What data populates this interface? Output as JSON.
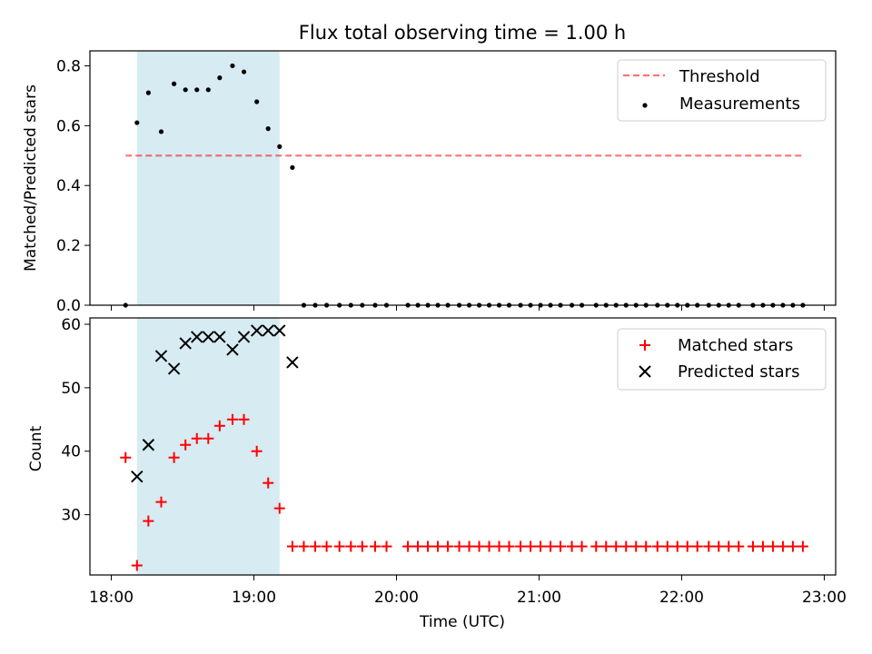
{
  "chart_data": [
    {
      "type": "scatter",
      "title": "Flux total observing time = 1.00 h",
      "xlabel": "",
      "ylabel": "Matched/Predicted stars",
      "ylim": [
        0,
        0.85
      ],
      "yticks": [
        "0.0",
        "0.2",
        "0.4",
        "0.6",
        "0.8"
      ],
      "x_unit": "hours UTC",
      "xlim": [
        17.85,
        23.08
      ],
      "shaded_interval": {
        "x": [
          18.18,
          19.18
        ],
        "color": "#add8e6"
      },
      "legend_position": "upper right",
      "threshold": {
        "name": "Threshold",
        "y": 0.5,
        "x": [
          18.1,
          22.86
        ],
        "color": "#ff0000"
      },
      "series": [
        {
          "name": "Measurements",
          "marker": "dot",
          "color": "#000000",
          "x": [
            18.1,
            18.18,
            18.26,
            18.35,
            18.44,
            18.52,
            18.6,
            18.68,
            18.76,
            18.85,
            18.93,
            19.02,
            19.1,
            19.18,
            19.27,
            19.35,
            19.43,
            19.51,
            19.6,
            19.68,
            19.76,
            19.85,
            19.93,
            20.08,
            20.15,
            20.22,
            20.29,
            20.36,
            20.44,
            20.51,
            20.58,
            20.65,
            20.72,
            20.79,
            20.87,
            20.94,
            21.01,
            21.08,
            21.15,
            21.23,
            21.3,
            21.4,
            21.47,
            21.54,
            21.61,
            21.68,
            21.75,
            21.83,
            21.9,
            21.97,
            22.04,
            22.11,
            22.19,
            22.26,
            22.33,
            22.4,
            22.5,
            22.57,
            22.64,
            22.71,
            22.78,
            22.85
          ],
          "y": [
            0,
            0.61,
            0.71,
            0.58,
            0.74,
            0.72,
            0.72,
            0.72,
            0.76,
            0.8,
            0.78,
            0.68,
            0.59,
            0.53,
            0.46,
            0,
            0,
            0,
            0,
            0,
            0,
            0,
            0,
            0,
            0,
            0,
            0,
            0,
            0,
            0,
            0,
            0,
            0,
            0,
            0,
            0,
            0,
            0,
            0,
            0,
            0,
            0,
            0,
            0,
            0,
            0,
            0,
            0,
            0,
            0,
            0,
            0,
            0,
            0,
            0,
            0,
            0,
            0,
            0,
            0,
            0,
            0
          ]
        }
      ]
    },
    {
      "type": "scatter",
      "title": "",
      "xlabel": "Time (UTC)",
      "ylabel": "Count",
      "ylim": [
        20.5,
        61
      ],
      "yticks": [
        "30",
        "40",
        "50",
        "60"
      ],
      "xticks": [
        "18:00",
        "19:00",
        "20:00",
        "21:00",
        "22:00",
        "23:00"
      ],
      "x_unit": "hours UTC",
      "xlim": [
        17.85,
        23.08
      ],
      "shaded_interval": {
        "x": [
          18.18,
          19.18
        ],
        "color": "#add8e6"
      },
      "legend_position": "upper right",
      "series": [
        {
          "name": "Matched stars",
          "marker": "plus",
          "color": "#ff0000",
          "x": [
            18.1,
            18.18,
            18.26,
            18.35,
            18.44,
            18.52,
            18.6,
            18.68,
            18.76,
            18.85,
            18.93,
            19.02,
            19.1,
            19.18,
            19.27,
            19.35,
            19.43,
            19.51,
            19.6,
            19.68,
            19.76,
            19.85,
            19.93,
            20.08,
            20.15,
            20.22,
            20.29,
            20.36,
            20.44,
            20.51,
            20.58,
            20.65,
            20.72,
            20.79,
            20.87,
            20.94,
            21.01,
            21.08,
            21.15,
            21.23,
            21.3,
            21.4,
            21.47,
            21.54,
            21.61,
            21.68,
            21.75,
            21.83,
            21.9,
            21.97,
            22.04,
            22.11,
            22.19,
            22.26,
            22.33,
            22.4,
            22.5,
            22.57,
            22.64,
            22.71,
            22.78,
            22.85
          ],
          "y": [
            39,
            22,
            29,
            32,
            39,
            41,
            42,
            42,
            44,
            45,
            45,
            40,
            35,
            31,
            25,
            25,
            25,
            25,
            25,
            25,
            25,
            25,
            25,
            25,
            25,
            25,
            25,
            25,
            25,
            25,
            25,
            25,
            25,
            25,
            25,
            25,
            25,
            25,
            25,
            25,
            25,
            25,
            25,
            25,
            25,
            25,
            25,
            25,
            25,
            25,
            25,
            25,
            25,
            25,
            25,
            25,
            25,
            25,
            25,
            25,
            25,
            25
          ]
        },
        {
          "name": "Predicted stars",
          "marker": "x",
          "color": "#000000",
          "x": [
            18.18,
            18.26,
            18.35,
            18.44,
            18.52,
            18.6,
            18.68,
            18.76,
            18.85,
            18.93,
            19.02,
            19.1,
            19.18,
            19.27
          ],
          "y": [
            36,
            41,
            55,
            53,
            57,
            58,
            58,
            58,
            56,
            58,
            59,
            59,
            59,
            54
          ]
        }
      ]
    }
  ]
}
